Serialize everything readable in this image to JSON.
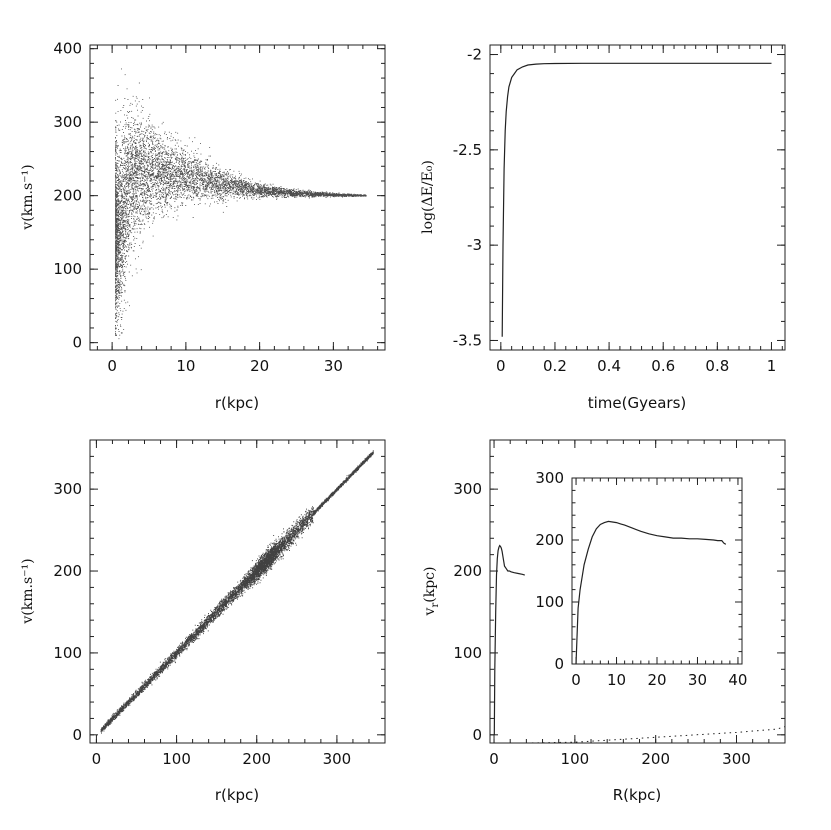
{
  "chart_data": [
    {
      "type": "scatter",
      "xlabel": "r(kpc)",
      "ylabel": "v(km.s⁻¹)",
      "xlim": [
        -3,
        37
      ],
      "ylim": [
        -10,
        405
      ],
      "xticks": [
        0,
        10,
        20,
        30
      ],
      "yticks": [
        0,
        100,
        200,
        300,
        400
      ],
      "grid": false,
      "description_points": {
        "ridge": [
          [
            1,
            150
          ],
          [
            2,
            205
          ],
          [
            3,
            225
          ],
          [
            5,
            232
          ],
          [
            8,
            230
          ],
          [
            12,
            222
          ],
          [
            16,
            214
          ],
          [
            20,
            207
          ],
          [
            25,
            203
          ],
          [
            30,
            201
          ],
          [
            34,
            200
          ]
        ],
        "spread": [
          [
            1,
            110
          ],
          [
            2,
            95
          ],
          [
            3,
            80
          ],
          [
            5,
            55
          ],
          [
            8,
            40
          ],
          [
            12,
            25
          ],
          [
            16,
            15
          ],
          [
            20,
            8
          ],
          [
            25,
            4
          ],
          [
            30,
            2
          ],
          [
            34,
            1
          ]
        ]
      }
    },
    {
      "type": "line",
      "xlabel": "time(Gyears)",
      "ylabel": "log(ΔE/E₀)",
      "xlim": [
        -0.04,
        1.05
      ],
      "ylim": [
        -3.55,
        -1.95
      ],
      "xticks": [
        0,
        0.2,
        0.4,
        0.6,
        0.8,
        1
      ],
      "yticks": [
        -3.5,
        -3,
        -2.5,
        -2
      ],
      "grid": false,
      "x": [
        0.005,
        0.008,
        0.012,
        0.016,
        0.02,
        0.025,
        0.03,
        0.04,
        0.05,
        0.06,
        0.08,
        0.1,
        0.13,
        0.16,
        0.2,
        0.3,
        0.5,
        0.7,
        0.9,
        1.0
      ],
      "y": [
        -3.48,
        -3.0,
        -2.6,
        -2.4,
        -2.3,
        -2.22,
        -2.17,
        -2.12,
        -2.1,
        -2.08,
        -2.065,
        -2.055,
        -2.05,
        -2.048,
        -2.047,
        -2.046,
        -2.046,
        -2.046,
        -2.046,
        -2.046
      ]
    },
    {
      "type": "scatter",
      "xlabel": "r(kpc)",
      "ylabel": "v(km.s⁻¹)",
      "xlim": [
        -8,
        360
      ],
      "ylim": [
        -10,
        360
      ],
      "xticks": [
        0,
        100,
        200,
        300
      ],
      "yticks": [
        0,
        100,
        200,
        300
      ],
      "grid": false,
      "relation": "v ≈ r",
      "x_range": [
        5,
        345
      ],
      "dense_cluster": [
        210,
        210
      ]
    },
    {
      "type": "line",
      "xlabel": "R(kpc)",
      "ylabel": "v_r(kpc)",
      "xlim": [
        -5,
        360
      ],
      "ylim": [
        -10,
        360
      ],
      "xticks": [
        0,
        100,
        200,
        300
      ],
      "yticks": [
        0,
        100,
        200,
        300
      ],
      "grid": false,
      "series": [
        {
          "x": [
            0.3,
            1,
            2,
            3,
            4,
            5,
            6,
            7,
            8,
            9,
            10,
            11,
            12,
            13,
            15,
            17,
            19,
            21,
            25,
            30,
            35,
            38
          ],
          "y": [
            0,
            80,
            150,
            195,
            215,
            225,
            229,
            231,
            230,
            228,
            224,
            218,
            212,
            206,
            203,
            200,
            200,
            199,
            198,
            197,
            196,
            195
          ]
        },
        {
          "style": "dotted",
          "x": [
            40,
            100,
            150,
            200,
            250,
            300,
            350,
            360
          ],
          "y": [
            -10,
            -9,
            -6,
            -3,
            0,
            3,
            7,
            10
          ]
        }
      ],
      "inset": {
        "type": "line",
        "xlim": [
          -1,
          41
        ],
        "ylim": [
          0,
          300
        ],
        "xticks": [
          0,
          10,
          20,
          30,
          40
        ],
        "yticks": [
          0,
          100,
          200,
          300
        ],
        "x": [
          0,
          0.5,
          1,
          1.5,
          2,
          3,
          4,
          5,
          6,
          7,
          8,
          9,
          10,
          11,
          12,
          14,
          16,
          18,
          20,
          22,
          24,
          26,
          28,
          30,
          32,
          34,
          35,
          36,
          36.5,
          37
        ],
        "y": [
          0,
          90,
          120,
          140,
          160,
          185,
          205,
          218,
          225,
          228,
          230,
          229,
          228,
          226,
          224,
          219,
          214,
          210,
          207,
          205,
          203,
          203,
          202,
          202,
          201,
          200,
          199,
          199,
          195,
          193
        ]
      }
    }
  ]
}
